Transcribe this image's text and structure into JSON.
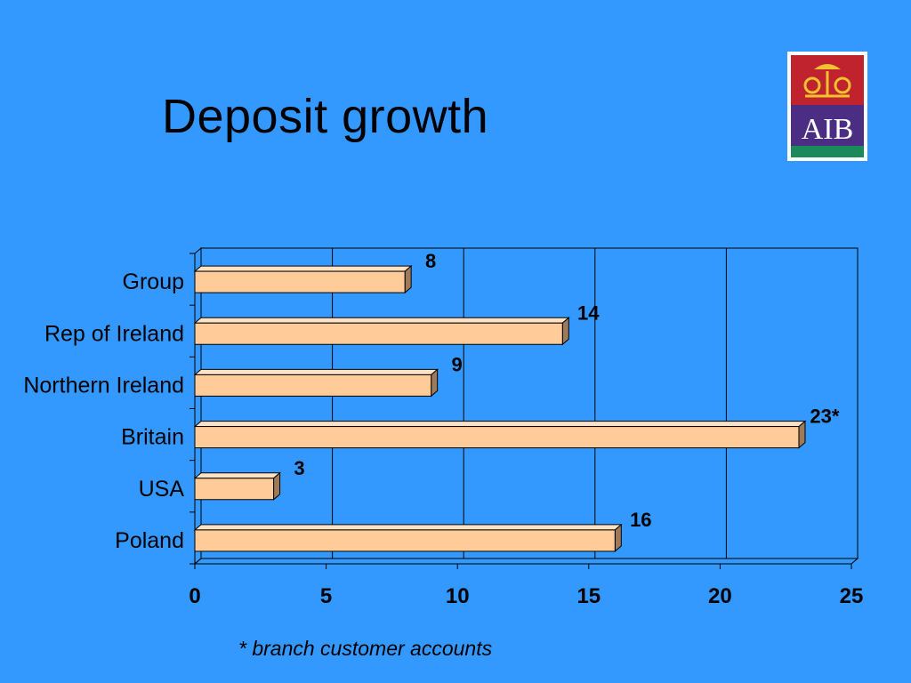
{
  "slide": {
    "title": "Deposit growth",
    "footnote": "* branch customer accounts"
  },
  "logo": {
    "text": "AIB",
    "colors": {
      "top": "#c0232d",
      "middle": "#4b2e83",
      "stripe": "#1a8a5a",
      "emblem": "#f2c230"
    }
  },
  "colors": {
    "background": "#3399ff",
    "bar_face": "#ffcc99",
    "bar_top": "#ffe2c4",
    "bar_side": "#9c7a5a",
    "grid": "#000000"
  },
  "chart_data": {
    "type": "bar",
    "orientation": "horizontal",
    "style": "3d",
    "categories": [
      "Group",
      "Rep of Ireland",
      "Northern Ireland",
      "Britain",
      "USA",
      "Poland"
    ],
    "values": [
      8,
      14,
      9,
      23,
      3,
      16
    ],
    "data_labels": [
      "8",
      "14",
      "9",
      "23*",
      "3",
      "16"
    ],
    "xlim": [
      0,
      25
    ],
    "xticks": [
      "0",
      "5",
      "10",
      "15",
      "20",
      "25"
    ],
    "grid": true,
    "legend": false
  }
}
